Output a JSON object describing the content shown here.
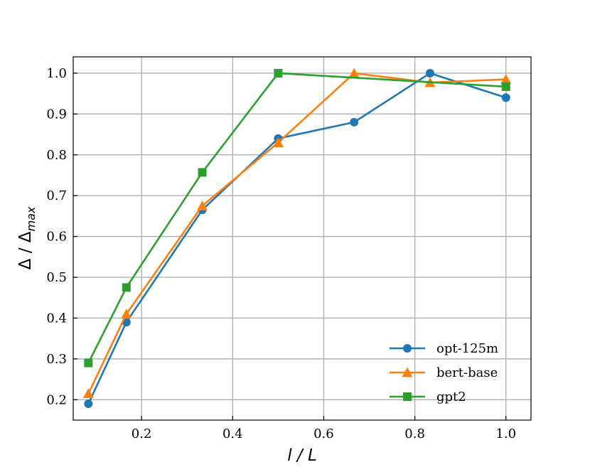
{
  "chart_data": {
    "type": "line",
    "xlabel": "l / L",
    "ylabel": "Δ / Δmax",
    "xlim": [
      0.05,
      1.055
    ],
    "ylim": [
      0.15,
      1.04
    ],
    "xticks": [
      "0.2",
      "0.4",
      "0.6",
      "0.8",
      "1.0"
    ],
    "yticks": [
      "0.2",
      "0.3",
      "0.4",
      "0.5",
      "0.6",
      "0.7",
      "0.8",
      "0.9",
      "1.0"
    ],
    "grid": true,
    "legend_position": "lower-right",
    "series": [
      {
        "name": "opt-125m",
        "color": "#1f77b4",
        "marker": "circle",
        "x": [
          0.0833,
          0.1667,
          0.3333,
          0.5,
          0.6667,
          0.8333,
          1.0
        ],
        "values": [
          0.19,
          0.39,
          0.665,
          0.84,
          0.88,
          1.0,
          0.94
        ]
      },
      {
        "name": "bert-base",
        "color": "#ff7f0e",
        "marker": "triangle",
        "x": [
          0.0833,
          0.1667,
          0.3333,
          0.5,
          0.6667,
          0.8333,
          1.0
        ],
        "values": [
          0.215,
          0.41,
          0.675,
          0.83,
          1.0,
          0.977,
          0.985
        ]
      },
      {
        "name": "gpt2",
        "color": "#2ca02c",
        "marker": "square",
        "x": [
          0.0833,
          0.1667,
          0.3333,
          0.5,
          1.0
        ],
        "values": [
          0.29,
          0.475,
          0.757,
          1.0,
          0.967
        ]
      }
    ]
  }
}
